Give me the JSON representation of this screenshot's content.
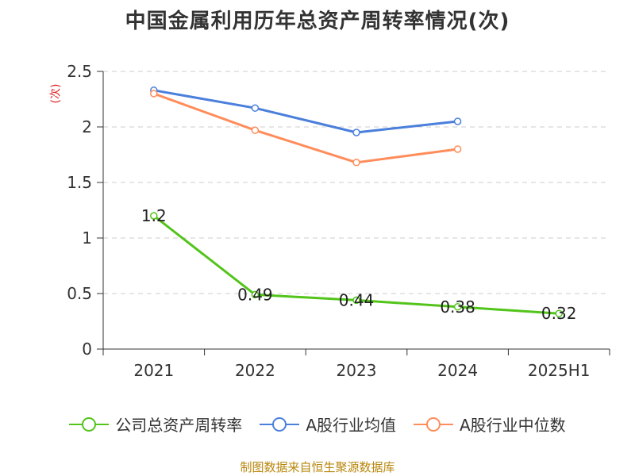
{
  "title": "中国金属利用历年总资产周转率情况(次)",
  "unit_label": "(次)",
  "source": "制图数据来自恒生聚源数据库",
  "chart_data": {
    "type": "line",
    "categories": [
      "2021",
      "2022",
      "2023",
      "2024",
      "2025H1"
    ],
    "ylim": [
      0,
      2.5
    ],
    "yticks": [
      0,
      0.5,
      1,
      1.5,
      2,
      2.5
    ],
    "ytick_labels": [
      "0",
      "0.5",
      "1",
      "1.5",
      "2",
      "2.5"
    ],
    "grid": true,
    "legend_position": "bottom",
    "series": [
      {
        "name": "公司总资产周转率",
        "color": "#52c41a",
        "values": [
          1.2,
          0.49,
          0.44,
          0.38,
          0.32
        ],
        "labels": [
          "1.2",
          "0.49",
          "0.44",
          "0.38",
          "0.32"
        ]
      },
      {
        "name": "A股行业均值",
        "color": "#4a7fdc",
        "values": [
          2.33,
          2.17,
          1.95,
          2.05,
          null
        ]
      },
      {
        "name": "A股行业中位数",
        "color": "#ff8c5a",
        "values": [
          2.3,
          1.97,
          1.68,
          1.8,
          null
        ]
      }
    ]
  }
}
